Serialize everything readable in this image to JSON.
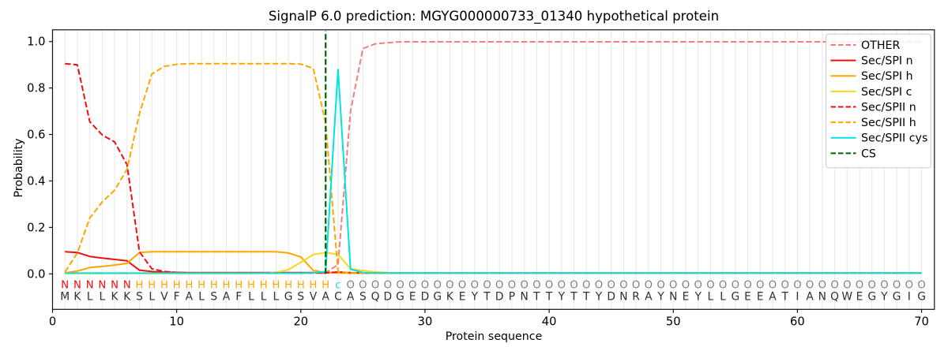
{
  "title": "SignalP 6.0 prediction: MGYG000000733_01340 hypothetical protein",
  "chart_data": {
    "type": "line",
    "title": "SignalP 6.0 prediction: MGYG000000733_01340 hypothetical protein",
    "xlabel": "Protein sequence",
    "ylabel": "Probability",
    "xlim": [
      0,
      71
    ],
    "ylim": [
      -0.14,
      1.052
    ],
    "x_ticks": [
      0,
      10,
      20,
      30,
      40,
      50,
      60,
      70
    ],
    "y_ticks": [
      "0.0",
      "0.2",
      "0.4",
      "0.6",
      "0.8",
      "1.0"
    ],
    "grid": "vertical gridline at every residue position 1-70",
    "legend_position": "upper right",
    "x_start": 1,
    "series": [
      {
        "name": "OTHER",
        "color": "#f08080",
        "dashed": true,
        "values": [
          0.003,
          0.003,
          0.003,
          0.003,
          0.003,
          0.003,
          0.003,
          0.003,
          0.003,
          0.003,
          0.003,
          0.003,
          0.003,
          0.003,
          0.003,
          0.003,
          0.003,
          0.003,
          0.003,
          0.003,
          0.003,
          0.004,
          0.04,
          0.7,
          0.97,
          0.99,
          0.995,
          0.999,
          0.999,
          0.999,
          0.999,
          0.999,
          0.999,
          0.999,
          0.999,
          0.999,
          0.999,
          0.999,
          0.999,
          0.999,
          0.999,
          0.999,
          0.999,
          0.999,
          0.999,
          0.999,
          0.999,
          0.999,
          0.999,
          0.999,
          0.999,
          0.999,
          0.999,
          0.999,
          0.999,
          0.999,
          0.999,
          0.999,
          0.999,
          0.999,
          0.999,
          0.999,
          0.999,
          0.999,
          0.999,
          0.999,
          0.999,
          0.999,
          0.999,
          0.999
        ]
      },
      {
        "name": "Sec/SPI n",
        "color": "#f20d0d",
        "dashed": false,
        "values": [
          0.095,
          0.092,
          0.075,
          0.068,
          0.062,
          0.056,
          0.016,
          0.01,
          0.007,
          0.006,
          0.005,
          0.005,
          0.005,
          0.005,
          0.005,
          0.005,
          0.005,
          0.005,
          0.005,
          0.005,
          0.005,
          0.005,
          0.006,
          0.004,
          0.003,
          0.003,
          0.003,
          0.003,
          0.003,
          0.003,
          0.003,
          0.003,
          0.003,
          0.003,
          0.003,
          0.003,
          0.003,
          0.003,
          0.003,
          0.003,
          0.003,
          0.003,
          0.003,
          0.003,
          0.003,
          0.003,
          0.003,
          0.003,
          0.003,
          0.003,
          0.003,
          0.003,
          0.003,
          0.003,
          0.003,
          0.003,
          0.003,
          0.003,
          0.003,
          0.003,
          0.003,
          0.003,
          0.003,
          0.003,
          0.003,
          0.003,
          0.003,
          0.003,
          0.003,
          0.003
        ]
      },
      {
        "name": "Sec/SPI h",
        "color": "#ffa500",
        "dashed": false,
        "values": [
          0.004,
          0.012,
          0.027,
          0.032,
          0.038,
          0.045,
          0.092,
          0.095,
          0.095,
          0.095,
          0.095,
          0.095,
          0.095,
          0.095,
          0.095,
          0.095,
          0.095,
          0.095,
          0.09,
          0.073,
          0.015,
          0.005,
          0.004,
          0.003,
          0.003,
          0.003,
          0.003,
          0.003,
          0.003,
          0.003,
          0.003,
          0.003,
          0.003,
          0.003,
          0.003,
          0.003,
          0.003,
          0.003,
          0.003,
          0.003,
          0.003,
          0.003,
          0.003,
          0.003,
          0.003,
          0.003,
          0.003,
          0.003,
          0.003,
          0.003,
          0.003,
          0.003,
          0.003,
          0.003,
          0.003,
          0.003,
          0.003,
          0.003,
          0.003,
          0.003,
          0.003,
          0.003,
          0.003,
          0.003,
          0.003,
          0.003,
          0.003,
          0.003,
          0.003,
          0.003
        ]
      },
      {
        "name": "Sec/SPI c",
        "color": "#ffd320",
        "dashed": false,
        "values": [
          0.002,
          0.002,
          0.002,
          0.002,
          0.002,
          0.002,
          0.002,
          0.002,
          0.002,
          0.002,
          0.002,
          0.002,
          0.002,
          0.002,
          0.002,
          0.002,
          0.003,
          0.006,
          0.018,
          0.05,
          0.083,
          0.092,
          0.083,
          0.022,
          0.014,
          0.008,
          0.005,
          0.003,
          0.003,
          0.003,
          0.003,
          0.003,
          0.003,
          0.003,
          0.003,
          0.003,
          0.003,
          0.003,
          0.003,
          0.003,
          0.003,
          0.003,
          0.003,
          0.003,
          0.003,
          0.003,
          0.003,
          0.003,
          0.003,
          0.003,
          0.003,
          0.003,
          0.003,
          0.003,
          0.003,
          0.003,
          0.003,
          0.003,
          0.003,
          0.003,
          0.003,
          0.003,
          0.003,
          0.003,
          0.003,
          0.003,
          0.003,
          0.003,
          0.003,
          0.003
        ]
      },
      {
        "name": "Sec/SPII n",
        "color": "#f20d0d",
        "dashed": true,
        "values": [
          0.905,
          0.9,
          0.655,
          0.598,
          0.568,
          0.47,
          0.095,
          0.022,
          0.01,
          0.006,
          0.004,
          0.004,
          0.004,
          0.004,
          0.004,
          0.004,
          0.004,
          0.004,
          0.004,
          0.004,
          0.004,
          0.004,
          0.008,
          0.005,
          0.0035,
          0.0035,
          0.0035,
          0.0035,
          0.0035,
          0.0035,
          0.0035,
          0.0035,
          0.0035,
          0.0035,
          0.0035,
          0.0035,
          0.0035,
          0.0035,
          0.0035,
          0.0035,
          0.0035,
          0.0035,
          0.0035,
          0.0035,
          0.0035,
          0.0035,
          0.0035,
          0.0035,
          0.0035,
          0.0035,
          0.0035,
          0.0035,
          0.0035,
          0.0035,
          0.0035,
          0.0035,
          0.0035,
          0.0035,
          0.0035,
          0.0035,
          0.0035,
          0.0035,
          0.0035,
          0.0035,
          0.0035,
          0.0035,
          0.0035,
          0.0035,
          0.0035,
          0.0035
        ]
      },
      {
        "name": "Sec/SPII h",
        "color": "#ffa500",
        "dashed": true,
        "values": [
          0.008,
          0.09,
          0.24,
          0.31,
          0.36,
          0.45,
          0.69,
          0.86,
          0.893,
          0.902,
          0.905,
          0.905,
          0.905,
          0.905,
          0.905,
          0.905,
          0.905,
          0.905,
          0.905,
          0.903,
          0.885,
          0.65,
          0.01,
          0.004,
          0.003,
          0.003,
          0.003,
          0.003,
          0.003,
          0.003,
          0.003,
          0.003,
          0.003,
          0.003,
          0.003,
          0.003,
          0.003,
          0.003,
          0.003,
          0.003,
          0.003,
          0.003,
          0.003,
          0.003,
          0.003,
          0.003,
          0.003,
          0.003,
          0.003,
          0.003,
          0.003,
          0.003,
          0.003,
          0.003,
          0.003,
          0.003,
          0.003,
          0.003,
          0.003,
          0.003,
          0.003,
          0.003,
          0.003,
          0.003,
          0.003,
          0.003,
          0.003,
          0.003,
          0.003,
          0.003
        ]
      },
      {
        "name": "Sec/SPII cys",
        "color": "#00e5e0",
        "dashed": false,
        "values": [
          0.003,
          0.003,
          0.003,
          0.003,
          0.003,
          0.003,
          0.003,
          0.003,
          0.003,
          0.003,
          0.003,
          0.003,
          0.003,
          0.003,
          0.003,
          0.003,
          0.003,
          0.003,
          0.003,
          0.003,
          0.004,
          0.01,
          0.88,
          0.02,
          0.005,
          0.0035,
          0.0035,
          0.0035,
          0.0035,
          0.0035,
          0.0035,
          0.0035,
          0.0035,
          0.0035,
          0.0035,
          0.0035,
          0.0035,
          0.0035,
          0.0035,
          0.0035,
          0.0035,
          0.0035,
          0.0035,
          0.0035,
          0.0035,
          0.0035,
          0.0035,
          0.0035,
          0.0035,
          0.0035,
          0.0035,
          0.0035,
          0.0035,
          0.0035,
          0.0035,
          0.0035,
          0.0035,
          0.0035,
          0.0035,
          0.0035,
          0.0035,
          0.0035,
          0.0035,
          0.0035,
          0.0035,
          0.0035,
          0.0035,
          0.0035,
          0.0035,
          0.0035
        ]
      }
    ],
    "cs_line": {
      "name": "CS",
      "x": 22,
      "color": "#006400",
      "dashed": true
    },
    "sequence": "MKLLKKSLVFALSAFLLLGSVACASQDGEDGKEYTDPNTTYTTYDNRAYNEYLLGEEATIANQWEGYGIG",
    "region_labels": "NNNNNNHHHHHHHHHHHHHHHHcOOOOOOOOOOOOOOOOOOOOOOOOOOOOOOOOOOOOOOOOOOOOOOO",
    "region_colors": {
      "N": "#f20d0d",
      "H": "#ffa500",
      "c": "#2fd5d5",
      "O": "#7f7f7f"
    },
    "sequence_color": "#303030"
  }
}
